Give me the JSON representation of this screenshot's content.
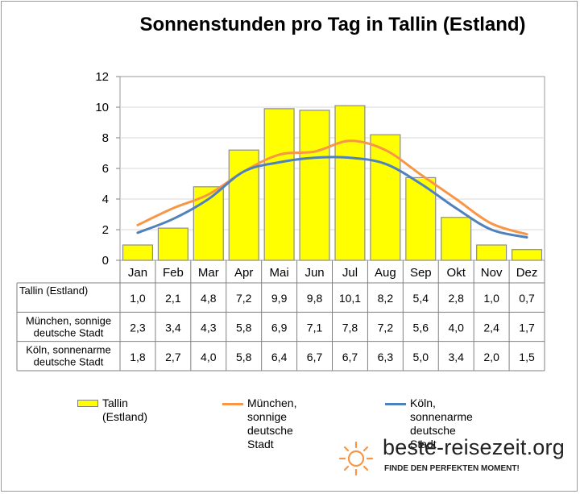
{
  "chart_data": {
    "type": "bar",
    "title": "Sonnenstunden pro Tag in Tallin (Estland)",
    "categories": [
      "Jan",
      "Feb",
      "Mar",
      "Apr",
      "Mai",
      "Jun",
      "Jul",
      "Aug",
      "Sep",
      "Okt",
      "Nov",
      "Dez"
    ],
    "ylim": [
      0,
      12
    ],
    "yticks": [
      0,
      2,
      4,
      6,
      8,
      10,
      12
    ],
    "grid": true,
    "legend_position": "bottom",
    "series": [
      {
        "name": "Tallin (Estland)",
        "type": "bar",
        "table_label": "Tallin (Estland)",
        "color": "#ffff00",
        "values": [
          1.0,
          2.1,
          4.8,
          7.2,
          9.9,
          9.8,
          10.1,
          8.2,
          5.4,
          2.8,
          1.0,
          0.7
        ],
        "display": [
          "1,0",
          "2,1",
          "4,8",
          "7,2",
          "9,9",
          "9,8",
          "10,1",
          "8,2",
          "5,4",
          "2,8",
          "1,0",
          "0,7"
        ]
      },
      {
        "name": "München, sonnige\ndeutsche Stadt",
        "type": "line",
        "table_label": "München, sonnige\ndeutsche Stadt",
        "color": "#f79646",
        "values": [
          2.3,
          3.4,
          4.3,
          5.8,
          6.9,
          7.1,
          7.8,
          7.2,
          5.6,
          4.0,
          2.4,
          1.7
        ],
        "display": [
          "2,3",
          "3,4",
          "4,3",
          "5,8",
          "6,9",
          "7,1",
          "7,8",
          "7,2",
          "5,6",
          "4,0",
          "2,4",
          "1,7"
        ]
      },
      {
        "name": "Köln, sonnenarme\ndeutsche Stadt",
        "type": "line",
        "table_label": "Köln, sonnenarme\ndeutsche Stadt",
        "color": "#4f81bd",
        "values": [
          1.8,
          2.7,
          4.0,
          5.8,
          6.4,
          6.7,
          6.7,
          6.3,
          5.0,
          3.4,
          2.0,
          1.5
        ],
        "display": [
          "1,8",
          "2,7",
          "4,0",
          "5,8",
          "6,4",
          "6,7",
          "6,7",
          "6,3",
          "5,0",
          "3,4",
          "2,0",
          "1,5"
        ]
      }
    ]
  },
  "branding": {
    "logo_text": "beste-reisezeit.org",
    "tagline": "FINDE DEN PERFEKTEN MOMENT!",
    "icon": "sun-icon",
    "icon_color": "#f79646"
  }
}
